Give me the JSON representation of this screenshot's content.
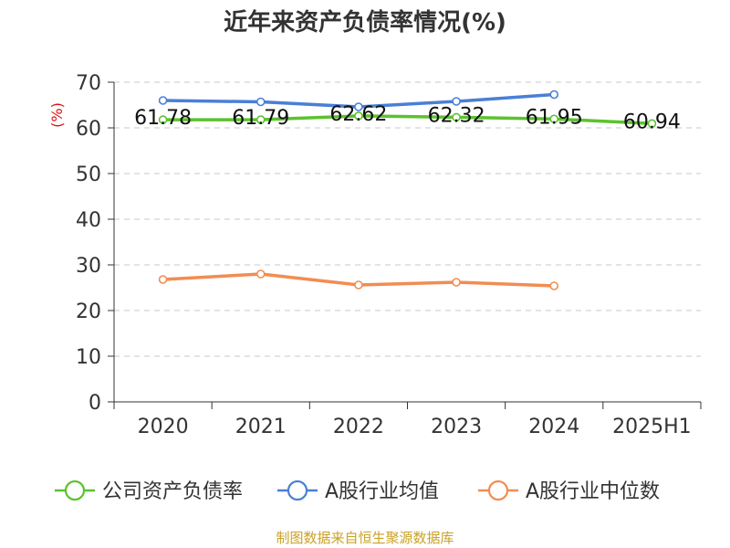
{
  "chart_data": {
    "type": "line",
    "title": "近年来资产负债率情况(%)",
    "ylabel_unit": "(%)",
    "categories": [
      "2020",
      "2021",
      "2022",
      "2023",
      "2024",
      "2025H1"
    ],
    "y_ticks": [
      "0",
      "10",
      "20",
      "30",
      "40",
      "50",
      "60",
      "70"
    ],
    "ylim": [
      0,
      70
    ],
    "grid": true,
    "legend_position": "bottom",
    "series": [
      {
        "name": "公司资产负债率",
        "color": "#5cc22d",
        "values": [
          61.78,
          61.79,
          62.62,
          62.32,
          61.95,
          60.94
        ],
        "labels": [
          "61.78",
          "61.79",
          "62.62",
          "62.32",
          "61.95",
          "60.94"
        ]
      },
      {
        "name": "A股行业均值",
        "color": "#4a7fd6",
        "values": [
          66.0,
          65.7,
          64.6,
          65.8,
          67.3,
          null
        ]
      },
      {
        "name": "A股行业中位数",
        "color": "#f28c52",
        "values": [
          26.8,
          28.0,
          25.6,
          26.2,
          25.4,
          null
        ]
      }
    ],
    "source": "制图数据来自恒生聚源数据库"
  }
}
